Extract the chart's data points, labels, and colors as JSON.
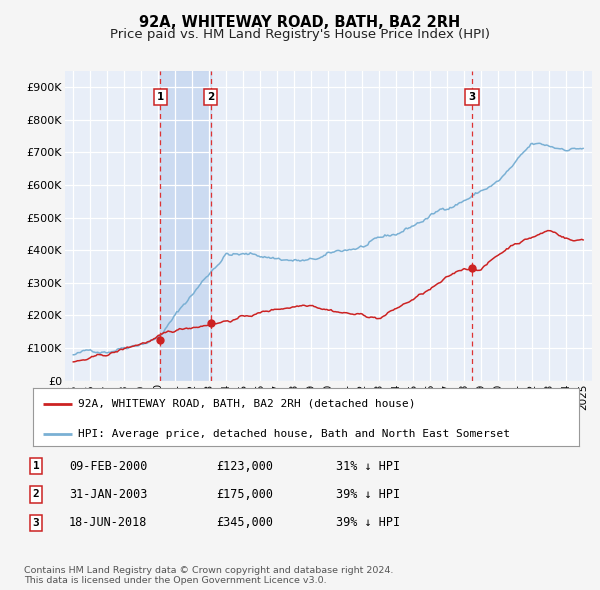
{
  "title": "92A, WHITEWAY ROAD, BATH, BA2 2RH",
  "subtitle": "Price paid vs. HM Land Registry's House Price Index (HPI)",
  "xlim": [
    1994.5,
    2025.5
  ],
  "ylim": [
    0,
    950000
  ],
  "yticks": [
    0,
    100000,
    200000,
    300000,
    400000,
    500000,
    600000,
    700000,
    800000,
    900000
  ],
  "ytick_labels": [
    "£0",
    "£100K",
    "£200K",
    "£300K",
    "£400K",
    "£500K",
    "£600K",
    "£700K",
    "£800K",
    "£900K"
  ],
  "fig_bg_color": "#f5f5f5",
  "plot_bg_color": "#e8eef8",
  "hpi_color": "#7ab0d4",
  "price_color": "#cc2222",
  "grid_color": "#ffffff",
  "sale_points": [
    {
      "year": 2000.11,
      "value": 123000,
      "label": "1"
    },
    {
      "year": 2003.08,
      "value": 175000,
      "label": "2"
    },
    {
      "year": 2018.46,
      "value": 345000,
      "label": "3"
    }
  ],
  "vline_color": "#dd3333",
  "shade_pairs": [
    [
      2000.11,
      2003.08
    ]
  ],
  "legend_red_label": "92A, WHITEWAY ROAD, BATH, BA2 2RH (detached house)",
  "legend_blue_label": "HPI: Average price, detached house, Bath and North East Somerset",
  "table_rows": [
    {
      "num": "1",
      "date": "09-FEB-2000",
      "price": "£123,000",
      "hpi": "31% ↓ HPI"
    },
    {
      "num": "2",
      "date": "31-JAN-2003",
      "price": "£175,000",
      "hpi": "39% ↓ HPI"
    },
    {
      "num": "3",
      "date": "18-JUN-2018",
      "price": "£345,000",
      "hpi": "39% ↓ HPI"
    }
  ],
  "footnote": "Contains HM Land Registry data © Crown copyright and database right 2024.\nThis data is licensed under the Open Government Licence v3.0.",
  "title_fontsize": 10.5,
  "subtitle_fontsize": 9.5,
  "axis_fontsize": 8,
  "legend_fontsize": 8,
  "table_fontsize": 8.5
}
